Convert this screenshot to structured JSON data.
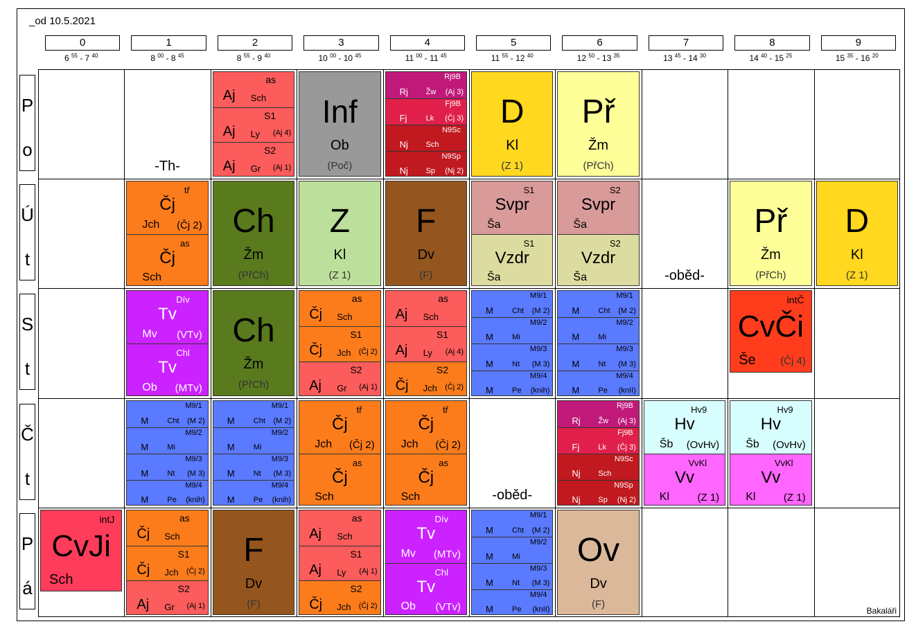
{
  "title": "_od 10.5.2021",
  "footer": "Bakaláři",
  "periods": [
    {
      "num": "0",
      "s1": "6",
      "s2": "55",
      "e1": "7",
      "e2": "40"
    },
    {
      "num": "1",
      "s1": "8",
      "s2": "00",
      "e1": "8",
      "e2": "45"
    },
    {
      "num": "2",
      "s1": "8",
      "s2": "55",
      "e1": "9",
      "e2": "40"
    },
    {
      "num": "3",
      "s1": "10",
      "s2": "00",
      "e1": "10",
      "e2": "45"
    },
    {
      "num": "4",
      "s1": "11",
      "s2": "00",
      "e1": "11",
      "e2": "45"
    },
    {
      "num": "5",
      "s1": "11",
      "s2": "55",
      "e1": "12",
      "e2": "40"
    },
    {
      "num": "6",
      "s1": "12",
      "s2": "50",
      "e1": "13",
      "e2": "35"
    },
    {
      "num": "7",
      "s1": "13",
      "s2": "45",
      "e1": "14",
      "e2": "30"
    },
    {
      "num": "8",
      "s1": "14",
      "s2": "40",
      "e1": "15",
      "e2": "25"
    },
    {
      "num": "9",
      "s1": "15",
      "s2": "35",
      "e1": "16",
      "e2": "20"
    }
  ],
  "days": [
    {
      "a": "P",
      "b": "o"
    },
    {
      "a": "Ú",
      "b": "t"
    },
    {
      "a": "S",
      "b": "t"
    },
    {
      "a": "Č",
      "b": "t"
    },
    {
      "a": "P",
      "b": "á"
    }
  ],
  "gaps": [
    {
      "day": 0,
      "period": 1,
      "text": "-Th-"
    },
    {
      "day": 1,
      "period": 7,
      "text": "-oběd-"
    },
    {
      "day": 3,
      "period": 5,
      "text": "-oběd-"
    }
  ],
  "colors": {
    "aj": "#fc5c5c",
    "cj": "#fc7c1c",
    "inf": "#999999",
    "lang": "#c0191f",
    "lang_rj": "#c0197a",
    "lang_fj": "#e0204a",
    "d": "#ffd81f",
    "pr": "#ffff99",
    "ch": "#5a7a1e",
    "z": "#bce09b",
    "f": "#94561e",
    "svpr": "#d99a9a",
    "vzdr": "#dcdca0",
    "tv": "#cc22ff",
    "m": "#5a7aff",
    "cvci": "#ff3c1c",
    "cvji": "#ff3c5a",
    "hv": "#d8ffff",
    "vv": "#ff66ff",
    "ov": "#dcb89a"
  },
  "cells": [
    {
      "day": 0,
      "period": 2,
      "color": "aj",
      "subs": [
        {
          "group": "as",
          "subj": "Aj",
          "room": "Sch",
          "note": ""
        },
        {
          "group": "S1",
          "subj": "Aj",
          "room": "Ly",
          "note": "(Aj 4)"
        },
        {
          "group": "S2",
          "subj": "Aj",
          "room": "Gr",
          "note": "(Aj 1)"
        }
      ]
    },
    {
      "day": 0,
      "period": 3,
      "color": "inf",
      "big": "Inf",
      "teacher": "Ob",
      "room": "(Poč)",
      "txt": "#000"
    },
    {
      "day": 0,
      "period": 4,
      "subs": [
        {
          "group": "Rj9B",
          "subj": "Rj",
          "room": "Žw",
          "note": "(Aj 3)",
          "color": "lang_rj"
        },
        {
          "group": "Fj9B",
          "subj": "Fj",
          "room": "Lk",
          "note": "(Čj 3)",
          "color": "lang_fj"
        },
        {
          "group": "N9Sc",
          "subj": "Nj",
          "room": "Sch",
          "note": "",
          "color": "lang"
        },
        {
          "group": "N9Sp",
          "subj": "Nj",
          "room": "Sp",
          "note": "(Nj 2)",
          "color": "lang"
        }
      ],
      "small": true
    },
    {
      "day": 0,
      "period": 5,
      "color": "d",
      "big": "D",
      "teacher": "Kl",
      "room": "(Z 1)"
    },
    {
      "day": 0,
      "period": 6,
      "color": "pr",
      "big": "Př",
      "teacher": "Žm",
      "room": "(PřCh)"
    },
    {
      "day": 1,
      "period": 1,
      "color": "cj",
      "subs": [
        {
          "group": "tř",
          "subj": "Čj",
          "teacherLine": "Jch",
          "note": "(Čj 2)",
          "center": true
        },
        {
          "group": "as",
          "subj": "Čj",
          "teacherLine": "Sch",
          "note": "",
          "center": true
        }
      ]
    },
    {
      "day": 1,
      "period": 2,
      "color": "ch",
      "big": "Ch",
      "teacher": "Žm",
      "room": "(PřCh)"
    },
    {
      "day": 1,
      "period": 3,
      "color": "z",
      "big": "Z",
      "teacher": "Kl",
      "room": "(Z 1)"
    },
    {
      "day": 1,
      "period": 4,
      "color": "f",
      "big": "F",
      "teacher": "Dv",
      "room": "(F)",
      "txt": "#000"
    },
    {
      "day": 1,
      "period": 5,
      "subs": [
        {
          "group": "S1",
          "subj": "Svpr",
          "teacherLine": "Ša",
          "note": "",
          "color": "svpr",
          "center": true
        },
        {
          "group": "S1",
          "subj": "Vzdr",
          "teacherLine": "Ša",
          "note": "",
          "color": "vzdr",
          "center": true
        }
      ]
    },
    {
      "day": 1,
      "period": 6,
      "subs": [
        {
          "group": "S2",
          "subj": "Svpr",
          "teacherLine": "Ša",
          "note": "",
          "color": "svpr",
          "center": true
        },
        {
          "group": "S2",
          "subj": "Vzdr",
          "teacherLine": "Ša",
          "note": "",
          "color": "vzdr",
          "center": true
        }
      ]
    },
    {
      "day": 1,
      "period": 8,
      "color": "pr",
      "big": "Př",
      "teacher": "Žm",
      "room": "(PřCh)"
    },
    {
      "day": 1,
      "period": 9,
      "color": "d",
      "big": "D",
      "teacher": "Kl",
      "room": "(Z 1)"
    },
    {
      "day": 2,
      "period": 1,
      "color": "tv",
      "subs": [
        {
          "group": "Dív",
          "subj": "Tv",
          "teacherLine": "Mv",
          "note": "(VTv)",
          "center": true
        },
        {
          "group": "Chl",
          "subj": "Tv",
          "teacherLine": "Ob",
          "note": "(MTv)",
          "center": true
        }
      ]
    },
    {
      "day": 2,
      "period": 2,
      "color": "ch",
      "big": "Ch",
      "teacher": "Žm",
      "room": "(PřCh)"
    },
    {
      "day": 2,
      "period": 3,
      "color": "cj",
      "subs": [
        {
          "group": "as",
          "subj": "Čj",
          "room": "Sch",
          "note": "",
          "color": "cj"
        },
        {
          "group": "S1",
          "subj": "Čj",
          "room": "Jch",
          "note": "(Čj 2)",
          "color": "cj"
        },
        {
          "group": "S2",
          "subj": "Aj",
          "room": "Gr",
          "note": "(Aj 1)",
          "color": "aj"
        }
      ]
    },
    {
      "day": 2,
      "period": 4,
      "color": "aj",
      "subs": [
        {
          "group": "as",
          "subj": "Aj",
          "room": "Sch",
          "note": "",
          "color": "aj"
        },
        {
          "group": "S1",
          "subj": "Aj",
          "room": "Ly",
          "note": "(Aj 4)",
          "color": "aj"
        },
        {
          "group": "S2",
          "subj": "Čj",
          "room": "Jch",
          "note": "(Čj 2)",
          "color": "cj"
        }
      ]
    },
    {
      "day": 2,
      "period": 5,
      "color": "m",
      "subs": [
        {
          "group": "M9/1",
          "subj": "M",
          "room": "Cht",
          "note": "(M 2)"
        },
        {
          "group": "M9/2",
          "subj": "M",
          "room": "Mi",
          "note": ""
        },
        {
          "group": "M9/3",
          "subj": "M",
          "room": "Nt",
          "note": "(M 3)"
        },
        {
          "group": "M9/4",
          "subj": "M",
          "room": "Pe",
          "note": "(knih)"
        }
      ],
      "small": true
    },
    {
      "day": 2,
      "period": 6,
      "color": "m",
      "subs": [
        {
          "group": "M9/1",
          "subj": "M",
          "room": "Cht",
          "note": "(M 2)"
        },
        {
          "group": "M9/2",
          "subj": "M",
          "room": "Mi",
          "note": ""
        },
        {
          "group": "M9/3",
          "subj": "M",
          "room": "Nt",
          "note": "(M 3)"
        },
        {
          "group": "M9/4",
          "subj": "M",
          "room": "Pe",
          "note": "(knII)"
        }
      ],
      "small": true
    },
    {
      "day": 2,
      "period": 8,
      "color": "cvci",
      "big": "CvČi",
      "teacher": "Še",
      "room": "(Čj 4)",
      "group": "intČ",
      "partial": true
    },
    {
      "day": 3,
      "period": 1,
      "color": "m",
      "subs": [
        {
          "group": "M9/1",
          "subj": "M",
          "room": "Cht",
          "note": "(M 2)"
        },
        {
          "group": "M9/2",
          "subj": "M",
          "room": "Mi",
          "note": ""
        },
        {
          "group": "M9/3",
          "subj": "M",
          "room": "Nt",
          "note": "(M 3)"
        },
        {
          "group": "M9/4",
          "subj": "M",
          "room": "Pe",
          "note": "(knih)"
        }
      ],
      "small": true
    },
    {
      "day": 3,
      "period": 2,
      "color": "m",
      "subs": [
        {
          "group": "M9/1",
          "subj": "M",
          "room": "Cht",
          "note": "(M 2)"
        },
        {
          "group": "M9/2",
          "subj": "M",
          "room": "Mi",
          "note": ""
        },
        {
          "group": "M9/3",
          "subj": "M",
          "room": "Nt",
          "note": "(M 3)"
        },
        {
          "group": "M9/4",
          "subj": "M",
          "room": "Pe",
          "note": "(knih)"
        }
      ],
      "small": true
    },
    {
      "day": 3,
      "period": 3,
      "color": "cj",
      "subs": [
        {
          "group": "tř",
          "subj": "Čj",
          "teacherLine": "Jch",
          "note": "(Čj 2)",
          "center": true
        },
        {
          "group": "as",
          "subj": "Čj",
          "teacherLine": "Sch",
          "note": "",
          "center": true
        }
      ]
    },
    {
      "day": 3,
      "period": 4,
      "color": "cj",
      "subs": [
        {
          "group": "tř",
          "subj": "Čj",
          "teacherLine": "Jch",
          "note": "(Čj 2)",
          "center": true
        },
        {
          "group": "as",
          "subj": "Čj",
          "teacherLine": "Sch",
          "note": "",
          "center": true
        }
      ]
    },
    {
      "day": 3,
      "period": 6,
      "subs": [
        {
          "group": "Rj9B",
          "subj": "Rj",
          "room": "Žw",
          "note": "(Aj 3)",
          "color": "lang_rj"
        },
        {
          "group": "Fj9B",
          "subj": "Fj",
          "room": "Lk",
          "note": "(Čj 3)",
          "color": "lang_fj"
        },
        {
          "group": "N9Sc",
          "subj": "Nj",
          "room": "Sch",
          "note": "",
          "color": "lang"
        },
        {
          "group": "N9Sp",
          "subj": "Nj",
          "room": "Sp",
          "note": "(Nj 2)",
          "color": "lang"
        }
      ],
      "small": true
    },
    {
      "day": 3,
      "period": 7,
      "subs": [
        {
          "group": "Hv9",
          "subj": "Hv",
          "teacherLine": "Šb",
          "note": "(OvHv)",
          "color": "hv",
          "center": true
        },
        {
          "group": "VvKl",
          "subj": "Vv",
          "teacherLine": "Kl",
          "note": "(Z 1)",
          "color": "vv",
          "center": true
        }
      ]
    },
    {
      "day": 3,
      "period": 8,
      "subs": [
        {
          "group": "Hv9",
          "subj": "Hv",
          "teacherLine": "Šb",
          "note": "(OvHv)",
          "color": "hv",
          "center": true
        },
        {
          "group": "VvKl",
          "subj": "Vv",
          "teacherLine": "Kl",
          "note": "(Z 1)",
          "color": "vv",
          "center": true
        }
      ]
    },
    {
      "day": 4,
      "period": 0,
      "color": "cvji",
      "big": "CvJi",
      "teacher": "Sch",
      "room": "",
      "group": "intJ",
      "partial": true
    },
    {
      "day": 4,
      "period": 1,
      "color": "cj",
      "subs": [
        {
          "group": "as",
          "subj": "Čj",
          "room": "Sch",
          "note": "",
          "color": "cj"
        },
        {
          "group": "S1",
          "subj": "Čj",
          "room": "Jch",
          "note": "(Čj 2)",
          "color": "cj"
        },
        {
          "group": "S2",
          "subj": "Aj",
          "room": "Gr",
          "note": "(Aj 1)",
          "color": "aj"
        }
      ]
    },
    {
      "day": 4,
      "period": 2,
      "color": "f",
      "big": "F",
      "teacher": "Dv",
      "room": "(F)",
      "txt": "#000"
    },
    {
      "day": 4,
      "period": 3,
      "color": "aj",
      "subs": [
        {
          "group": "as",
          "subj": "Aj",
          "room": "Sch",
          "note": "",
          "color": "aj"
        },
        {
          "group": "S1",
          "subj": "Aj",
          "room": "Ly",
          "note": "(Aj 1)",
          "color": "aj"
        },
        {
          "group": "S2",
          "subj": "Čj",
          "room": "Jch",
          "note": "(Čj 2)",
          "color": "cj"
        }
      ]
    },
    {
      "day": 4,
      "period": 4,
      "color": "tv",
      "subs": [
        {
          "group": "Dív",
          "subj": "Tv",
          "teacherLine": "Mv",
          "note": "(MTv)",
          "center": true
        },
        {
          "group": "Chl",
          "subj": "Tv",
          "teacherLine": "Ob",
          "note": "(VTv)",
          "center": true
        }
      ]
    },
    {
      "day": 4,
      "period": 5,
      "color": "m",
      "subs": [
        {
          "group": "M9/1",
          "subj": "M",
          "room": "Cht",
          "note": "(M 2)"
        },
        {
          "group": "M9/2",
          "subj": "M",
          "room": "Mi",
          "note": ""
        },
        {
          "group": "M9/3",
          "subj": "M",
          "room": "Nt",
          "note": "(M 3)"
        },
        {
          "group": "M9/4",
          "subj": "M",
          "room": "Pe",
          "note": "(knII)"
        }
      ],
      "small": true
    },
    {
      "day": 4,
      "period": 6,
      "color": "ov",
      "big": "Ov",
      "teacher": "Dv",
      "room": "(F)"
    }
  ]
}
